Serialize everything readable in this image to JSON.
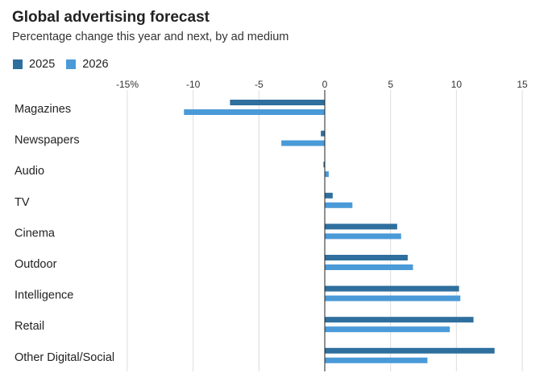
{
  "title": "Global advertising forecast",
  "subtitle": "Percentage change this year and next, by ad medium",
  "colors": {
    "s2025": "#2e6f9e",
    "s2026": "#4a9ad8",
    "grid": "#dcdcdc",
    "zero": "#222222"
  },
  "chart_data": {
    "type": "bar",
    "orientation": "horizontal",
    "title": "Global advertising forecast",
    "subtitle": "Percentage change this year and next, by ad medium",
    "categories": [
      "Magazines",
      "Newspapers",
      "Audio",
      "TV",
      "Cinema",
      "Outdoor",
      "Intelligence",
      "Retail",
      "Other Digital/Social"
    ],
    "series": [
      {
        "name": "2025",
        "values": [
          -7.2,
          -0.3,
          -0.1,
          0.6,
          5.5,
          6.3,
          10.2,
          11.3,
          12.9
        ]
      },
      {
        "name": "2026",
        "values": [
          -10.7,
          -3.3,
          0.3,
          2.1,
          5.8,
          6.7,
          10.3,
          9.5,
          7.8
        ]
      }
    ],
    "xlim": [
      -15,
      15
    ],
    "ticks": [
      -15,
      -10,
      -5,
      0,
      5,
      10,
      15
    ],
    "tick_labels": [
      "-15%",
      "-10",
      "-5",
      "0",
      "5",
      "10",
      "15"
    ],
    "xlabel": "",
    "ylabel": "",
    "grid": true,
    "legend": "top-left"
  }
}
